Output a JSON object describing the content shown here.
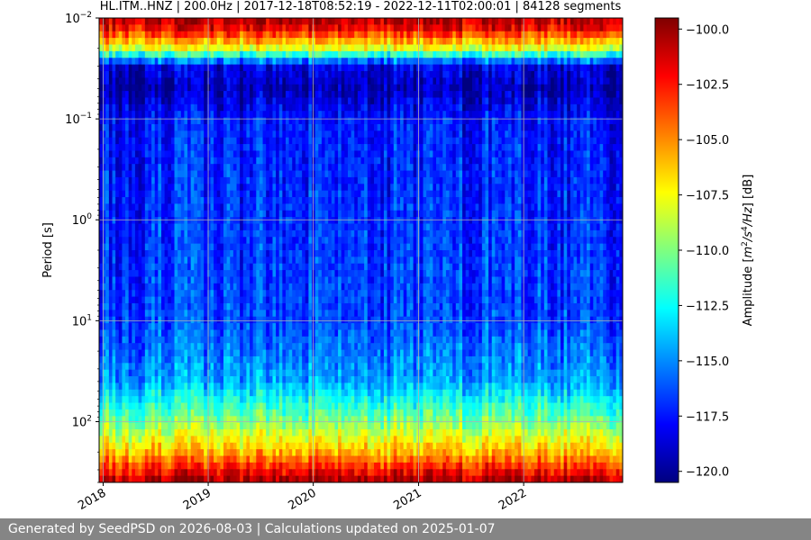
{
  "chart_data": {
    "type": "heatmap",
    "title": "HL.ITM..HNZ | 200.0Hz | 2017-12-18T08:52:19 - 2022-12-11T02:00:01 | 84128 segments",
    "xlabel": "",
    "ylabel": "Period [s]",
    "x_ticks": [
      "2018",
      "2019",
      "2020",
      "2021",
      "2022"
    ],
    "x_range": [
      "2017-12-18",
      "2022-12-11"
    ],
    "y_scale": "log",
    "y_range": [
      0.01,
      400
    ],
    "y_ticks": [
      {
        "base": "10",
        "exp": "−2",
        "value": 0.01
      },
      {
        "base": "10",
        "exp": "−1",
        "value": 0.1
      },
      {
        "base": "10",
        "exp": "0",
        "value": 1
      },
      {
        "base": "10",
        "exp": "1",
        "value": 10
      },
      {
        "base": "10",
        "exp": "2",
        "value": 100
      }
    ],
    "grid": true,
    "colormap": "jet",
    "colorbar": {
      "label_prefix": "Amplitude [",
      "label_unit_parts": [
        "m",
        "2",
        "/s",
        "4",
        "/Hz",
        "] [dB]"
      ],
      "range": [
        -120.5,
        -99.5
      ],
      "ticks": [
        "−100.0",
        "−102.5",
        "−105.0",
        "−107.5",
        "−110.0",
        "−112.5",
        "−115.0",
        "−117.5",
        "−120.0"
      ],
      "tick_values": [
        -100,
        -102.5,
        -105,
        -107.5,
        -110,
        -112.5,
        -115,
        -117.5,
        -120
      ]
    },
    "amplitude_profile_by_period": [
      {
        "period": 0.01,
        "db": -100.5
      },
      {
        "period": 0.013,
        "db": -102
      },
      {
        "period": 0.02,
        "db": -108
      },
      {
        "period": 0.03,
        "db": -118.5
      },
      {
        "period": 0.05,
        "db": -119.5
      },
      {
        "period": 0.1,
        "db": -117.5
      },
      {
        "period": 1,
        "db": -117
      },
      {
        "period": 10,
        "db": -116.5
      },
      {
        "period": 40,
        "db": -114.5
      },
      {
        "period": 100,
        "db": -110
      },
      {
        "period": 200,
        "db": -106
      },
      {
        "period": 400,
        "db": -100
      }
    ]
  },
  "footer": {
    "text": "Generated by SeedPSD on 2026-08-03 | Calculations updated on 2025-01-07"
  }
}
